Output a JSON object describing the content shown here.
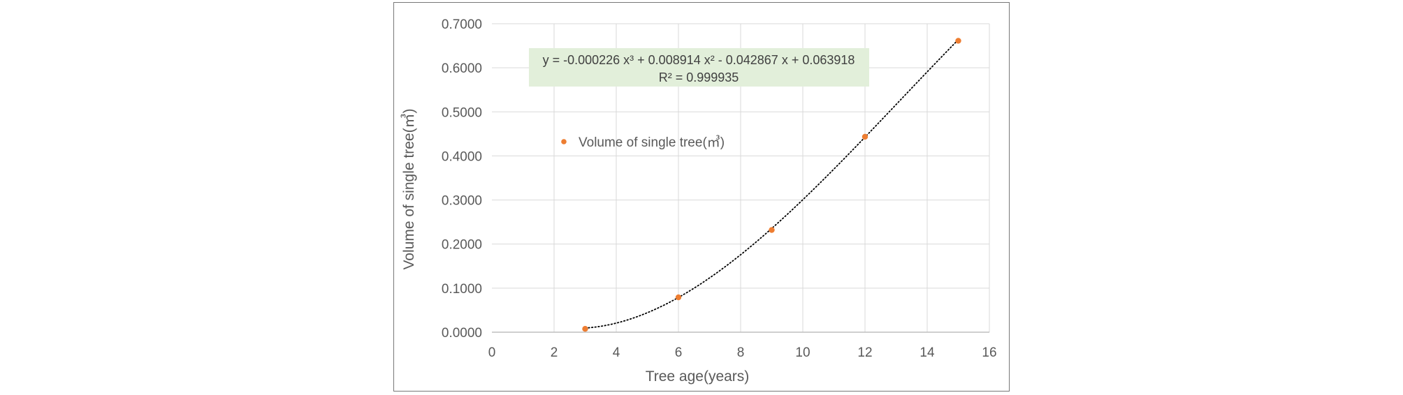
{
  "chart_data": {
    "type": "scatter",
    "xlabel": "Tree age(years)",
    "ylabel": "Volume of single tree(㎥)",
    "xlim": [
      0,
      16
    ],
    "ylim": [
      0,
      0.7
    ],
    "x_ticks": [
      "0",
      "2",
      "4",
      "6",
      "8",
      "10",
      "12",
      "14",
      "16"
    ],
    "y_ticks": [
      "0.0000",
      "0.1000",
      "0.2000",
      "0.3000",
      "0.4000",
      "0.5000",
      "0.6000",
      "0.7000"
    ],
    "grid": true,
    "series": [
      {
        "name": "Volume of single tree(㎥)",
        "color": "#ED7D31",
        "x": [
          3,
          6,
          9,
          12,
          15
        ],
        "y": [
          0.0076,
          0.0791,
          0.2319,
          0.4435,
          0.6613
        ]
      }
    ],
    "trendline": {
      "type": "polynomial",
      "order": 3,
      "coefficients": [
        -0.000226,
        0.008914,
        -0.042867,
        0.063918
      ],
      "color": "#000000",
      "style": "dotted",
      "equation_text": "y = -0.000226 x³ + 0.008914 x² - 0.042867 x + 0.063918",
      "r2_text": "R² = 0.999935",
      "label_background": "#E2EFDA"
    },
    "legend_position": "top-left"
  }
}
